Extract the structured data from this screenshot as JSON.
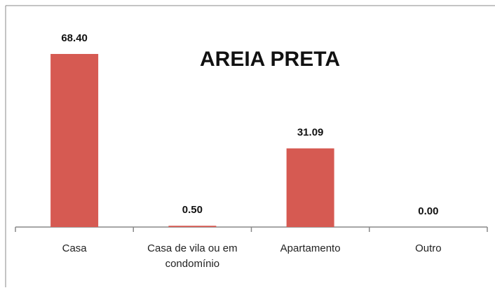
{
  "chart_data": {
    "type": "bar",
    "title": "AREIA PRETA",
    "categories": [
      "Casa",
      "Casa de vila ou em condomínio",
      "Apartamento",
      "Outro"
    ],
    "values": [
      68.4,
      0.5,
      31.09,
      0
    ],
    "value_labels": [
      "68.40",
      "0.50",
      "31.09",
      "0.00"
    ],
    "color": "#d65a52"
  }
}
